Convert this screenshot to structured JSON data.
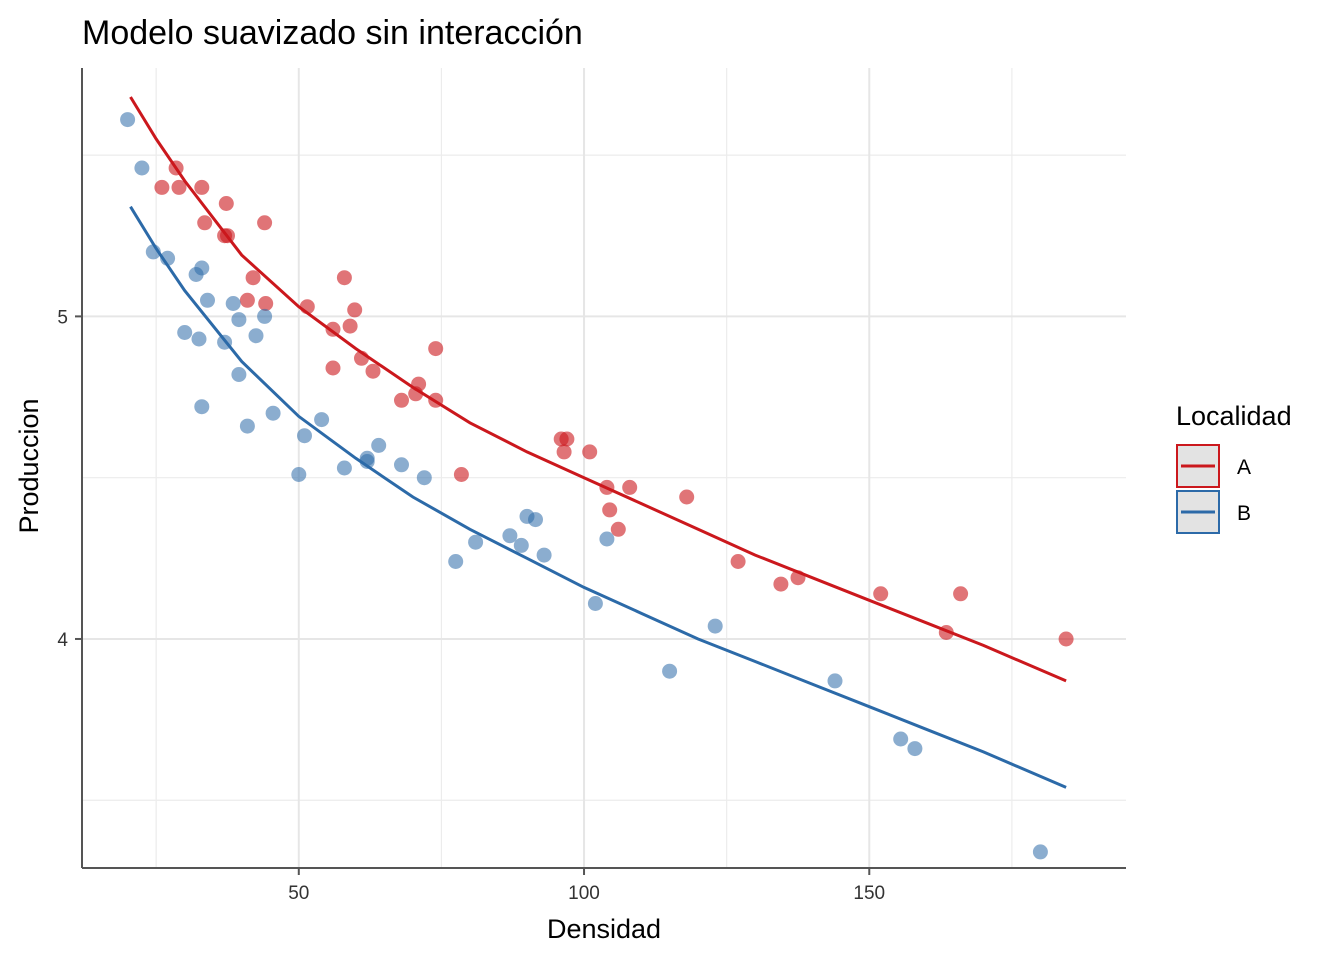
{
  "chart_data": {
    "type": "scatter",
    "title": "Modelo suavizado sin interacción",
    "xlabel": "Densidad",
    "ylabel": "Produccion",
    "xlim": [
      12,
      195
    ],
    "ylim": [
      3.29,
      5.77
    ],
    "x_ticks": [
      50,
      100,
      150
    ],
    "x_minor_ticks": [
      25,
      75,
      125,
      175
    ],
    "y_ticks": [
      4,
      5
    ],
    "y_minor_ticks": [
      3.5,
      4.5,
      5.5
    ],
    "grid": true,
    "legend": {
      "title": "Localidad",
      "position": "right"
    },
    "series": [
      {
        "name": "A",
        "color": "#CB181D",
        "points": [
          [
            26.0,
            5.4
          ],
          [
            28.5,
            5.46
          ],
          [
            29.0,
            5.4
          ],
          [
            33.0,
            5.4
          ],
          [
            33.5,
            5.29
          ],
          [
            37.0,
            5.25
          ],
          [
            37.3,
            5.35
          ],
          [
            37.5,
            5.25
          ],
          [
            41.0,
            5.05
          ],
          [
            42.0,
            5.12
          ],
          [
            44.0,
            5.29
          ],
          [
            44.2,
            5.04
          ],
          [
            51.5,
            5.03
          ],
          [
            56.0,
            4.96
          ],
          [
            56.0,
            4.84
          ],
          [
            58.0,
            5.12
          ],
          [
            59.0,
            4.97
          ],
          [
            59.8,
            5.02
          ],
          [
            61.0,
            4.87
          ],
          [
            63.0,
            4.83
          ],
          [
            68.0,
            4.74
          ],
          [
            70.5,
            4.76
          ],
          [
            71.0,
            4.79
          ],
          [
            74.0,
            4.9
          ],
          [
            74.0,
            4.74
          ],
          [
            78.5,
            4.51
          ],
          [
            96.0,
            4.62
          ],
          [
            96.5,
            4.58
          ],
          [
            97.0,
            4.62
          ],
          [
            101.0,
            4.58
          ],
          [
            104.0,
            4.47
          ],
          [
            104.5,
            4.4
          ],
          [
            106.0,
            4.34
          ],
          [
            108.0,
            4.47
          ],
          [
            118.0,
            4.44
          ],
          [
            127.0,
            4.24
          ],
          [
            134.5,
            4.17
          ],
          [
            137.5,
            4.19
          ],
          [
            152.0,
            4.14
          ],
          [
            163.5,
            4.02
          ],
          [
            166.0,
            4.14
          ],
          [
            184.5,
            4.0
          ]
        ],
        "fit": [
          [
            20.5,
            5.68
          ],
          [
            25,
            5.55
          ],
          [
            30,
            5.42
          ],
          [
            40,
            5.19
          ],
          [
            50,
            5.03
          ],
          [
            60,
            4.9
          ],
          [
            70,
            4.78
          ],
          [
            80,
            4.67
          ],
          [
            90,
            4.58
          ],
          [
            100,
            4.5
          ],
          [
            110,
            4.42
          ],
          [
            120,
            4.34
          ],
          [
            130,
            4.26
          ],
          [
            140,
            4.19
          ],
          [
            150,
            4.12
          ],
          [
            160,
            4.05
          ],
          [
            170,
            3.98
          ],
          [
            184.5,
            3.87
          ]
        ]
      },
      {
        "name": "B",
        "color": "#2C6AA8",
        "points": [
          [
            20.0,
            5.61
          ],
          [
            22.5,
            5.46
          ],
          [
            24.5,
            5.2
          ],
          [
            27.0,
            5.18
          ],
          [
            30.0,
            4.95
          ],
          [
            32.0,
            5.13
          ],
          [
            32.5,
            4.93
          ],
          [
            33.0,
            5.15
          ],
          [
            33.0,
            4.72
          ],
          [
            34.0,
            5.05
          ],
          [
            37.0,
            4.92
          ],
          [
            38.5,
            5.04
          ],
          [
            39.5,
            4.99
          ],
          [
            39.5,
            4.82
          ],
          [
            42.5,
            4.94
          ],
          [
            41.0,
            4.66
          ],
          [
            44.0,
            5.0
          ],
          [
            45.5,
            4.7
          ],
          [
            50.0,
            4.51
          ],
          [
            51.0,
            4.63
          ],
          [
            54.0,
            4.68
          ],
          [
            58.0,
            4.53
          ],
          [
            62.0,
            4.56
          ],
          [
            62.0,
            4.55
          ],
          [
            64.0,
            4.6
          ],
          [
            68.0,
            4.54
          ],
          [
            72.0,
            4.5
          ],
          [
            77.5,
            4.24
          ],
          [
            81.0,
            4.3
          ],
          [
            87.0,
            4.32
          ],
          [
            89.0,
            4.29
          ],
          [
            90.0,
            4.38
          ],
          [
            91.5,
            4.37
          ],
          [
            93.0,
            4.26
          ],
          [
            102.0,
            4.11
          ],
          [
            104.0,
            4.31
          ],
          [
            115.0,
            3.9
          ],
          [
            123.0,
            4.04
          ],
          [
            144.0,
            3.87
          ],
          [
            155.5,
            3.69
          ],
          [
            158.0,
            3.66
          ],
          [
            180.0,
            3.34
          ]
        ],
        "fit": [
          [
            20.5,
            5.34
          ],
          [
            25,
            5.21
          ],
          [
            30,
            5.08
          ],
          [
            40,
            4.86
          ],
          [
            50,
            4.69
          ],
          [
            60,
            4.56
          ],
          [
            70,
            4.44
          ],
          [
            80,
            4.34
          ],
          [
            90,
            4.25
          ],
          [
            100,
            4.16
          ],
          [
            110,
            4.08
          ],
          [
            120,
            4.0
          ],
          [
            130,
            3.93
          ],
          [
            140,
            3.86
          ],
          [
            150,
            3.79
          ],
          [
            160,
            3.72
          ],
          [
            170,
            3.65
          ],
          [
            184.5,
            3.54
          ]
        ]
      }
    ]
  }
}
